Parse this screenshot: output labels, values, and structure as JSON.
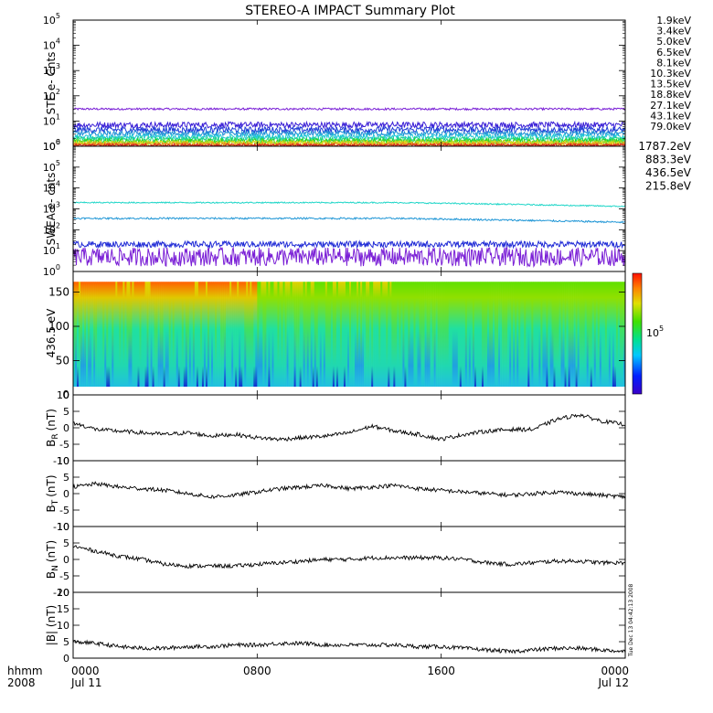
{
  "title": "STEREO-A IMPACT Summary Plot",
  "timestamp": "Tue Dec 13 04:42:13 2008",
  "bottom_left": {
    "line1": "hhmm",
    "line2": "2008"
  },
  "x_axis": {
    "ticks": [
      {
        "hours": 0,
        "label": "0000",
        "sub": "Jul 11"
      },
      {
        "hours": 8,
        "label": "0800",
        "sub": ""
      },
      {
        "hours": 16,
        "label": "1600",
        "sub": ""
      },
      {
        "hours": 24,
        "label": "0000",
        "sub": "Jul 12"
      }
    ]
  },
  "chart_data": [
    {
      "type": "line",
      "ylabel": "STE e- Cnts",
      "yscale": "log",
      "ylim": [
        1,
        100000
      ],
      "yticks": [
        {
          "base": "10",
          "exp": "0"
        },
        {
          "base": "10",
          "exp": "1"
        },
        {
          "base": "10",
          "exp": "2"
        },
        {
          "base": "10",
          "exp": "3"
        },
        {
          "base": "10",
          "exp": "4"
        },
        {
          "base": "10",
          "exp": "5"
        }
      ],
      "series": [
        {
          "name": "1.9keV",
          "color": "#7a1fd6",
          "level": 30,
          "noise": 0.04
        },
        {
          "name": "3.4keV",
          "color": "#3a1fd6",
          "level": 7,
          "noise": 0.12
        },
        {
          "name": "5.0keV",
          "color": "#1f3ad6",
          "level": 4.5,
          "noise": 0.12
        },
        {
          "name": "6.5keV",
          "color": "#1f8ed6",
          "level": 3.2,
          "noise": 0.1
        },
        {
          "name": "8.1keV",
          "color": "#1fc8d6",
          "level": 2.4,
          "noise": 0.1
        },
        {
          "name": "10.3keV",
          "color": "#1fd68a",
          "level": 1.9,
          "noise": 0.1
        },
        {
          "name": "13.5keV",
          "color": "#2ad61f",
          "level": 1.6,
          "noise": 0.1
        },
        {
          "name": "18.8keV",
          "color": "#9ed61f",
          "level": 1.4,
          "noise": 0.1
        },
        {
          "name": "27.1keV",
          "color": "#e6d41f",
          "level": 1.3,
          "noise": 0.1
        },
        {
          "name": "43.1keV",
          "color": "#e68a1f",
          "level": 1.2,
          "noise": 0.08
        },
        {
          "name": "79.0keV",
          "color": "#d61f1f",
          "level": 1.1,
          "noise": 0.06
        }
      ]
    },
    {
      "type": "line",
      "ylabel": "SWEA e- cnts",
      "yscale": "log",
      "ylim": [
        1,
        1000000
      ],
      "yticks": [
        {
          "base": "10",
          "exp": "0"
        },
        {
          "base": "10",
          "exp": "1"
        },
        {
          "base": "10",
          "exp": "2"
        },
        {
          "base": "10",
          "exp": "3"
        },
        {
          "base": "10",
          "exp": "4"
        },
        {
          "base": "10",
          "exp": "5"
        },
        {
          "base": "10",
          "exp": "6"
        }
      ],
      "series": [
        {
          "name": "1787.2eV",
          "color": "#7a1fd6",
          "level": 5,
          "noise": 0.45
        },
        {
          "name": "883.3eV",
          "color": "#1f2ad6",
          "level": 20,
          "noise": 0.15
        },
        {
          "name": "436.5eV",
          "color": "#1f96d6",
          "level": 350,
          "noise": 0.04
        },
        {
          "name": "215.8eV",
          "color": "#1fd6c8",
          "level": 2000,
          "noise": 0.03
        }
      ]
    },
    {
      "type": "heatmap",
      "ylabel": "436.5 eV",
      "ylim": [
        0,
        180
      ],
      "yticks": [
        "0",
        "50",
        "100",
        "150"
      ],
      "colorbar_label": "10",
      "colorbar_label_exp": "5"
    },
    {
      "type": "line",
      "ylabel": "B",
      "ylabel_sub": "R",
      "ylabel_unit": "(nT)",
      "ylim": [
        -10,
        10
      ],
      "yticks": [
        "-10",
        "-5",
        "0",
        "5",
        "10"
      ],
      "points": [
        [
          0,
          1.5
        ],
        [
          1,
          -0.5
        ],
        [
          2,
          -1
        ],
        [
          3,
          -1.5
        ],
        [
          4,
          -2
        ],
        [
          5,
          -1.5
        ],
        [
          6,
          -2.5
        ],
        [
          7,
          -2
        ],
        [
          8,
          -3
        ],
        [
          9,
          -3.5
        ],
        [
          10,
          -3
        ],
        [
          11,
          -2.5
        ],
        [
          12,
          -1.5
        ],
        [
          13,
          0.5
        ],
        [
          14,
          -1
        ],
        [
          15,
          -2
        ],
        [
          16,
          -3.5
        ],
        [
          17,
          -2
        ],
        [
          18,
          -1
        ],
        [
          19,
          -0.5
        ],
        [
          20,
          -0.5
        ],
        [
          21,
          2.5
        ],
        [
          22,
          4
        ],
        [
          23,
          2
        ],
        [
          24,
          1
        ]
      ]
    },
    {
      "type": "line",
      "ylabel": "B",
      "ylabel_sub": "T",
      "ylabel_unit": "(nT)",
      "ylim": [
        -10,
        10
      ],
      "yticks": [
        "-10",
        "-5",
        "0",
        "5",
        "10"
      ],
      "points": [
        [
          0,
          2
        ],
        [
          1,
          3
        ],
        [
          2,
          2
        ],
        [
          3,
          1.5
        ],
        [
          4,
          1
        ],
        [
          5,
          0
        ],
        [
          6,
          -1
        ],
        [
          7,
          -0.5
        ],
        [
          8,
          0.5
        ],
        [
          9,
          1.5
        ],
        [
          10,
          2
        ],
        [
          11,
          2.5
        ],
        [
          12,
          1.5
        ],
        [
          13,
          2
        ],
        [
          14,
          2.5
        ],
        [
          15,
          1.5
        ],
        [
          16,
          1
        ],
        [
          17,
          0.5
        ],
        [
          18,
          0
        ],
        [
          19,
          -0.5
        ],
        [
          20,
          0
        ],
        [
          21,
          0.5
        ],
        [
          22,
          0
        ],
        [
          23,
          -0.5
        ],
        [
          24,
          -1
        ]
      ]
    },
    {
      "type": "line",
      "ylabel": "B",
      "ylabel_sub": "N",
      "ylabel_unit": "(nT)",
      "ylim": [
        -10,
        10
      ],
      "yticks": [
        "-10",
        "-5",
        "0",
        "5",
        "10"
      ],
      "points": [
        [
          0,
          4
        ],
        [
          1,
          2.5
        ],
        [
          2,
          1
        ],
        [
          3,
          0
        ],
        [
          4,
          -1.5
        ],
        [
          5,
          -2
        ],
        [
          6,
          -2
        ],
        [
          7,
          -2
        ],
        [
          8,
          -1.5
        ],
        [
          9,
          -1
        ],
        [
          10,
          -0.5
        ],
        [
          11,
          0
        ],
        [
          12,
          0
        ],
        [
          13,
          0.5
        ],
        [
          14,
          0.5
        ],
        [
          15,
          0.5
        ],
        [
          16,
          0.5
        ],
        [
          17,
          0
        ],
        [
          18,
          -1
        ],
        [
          19,
          -1.5
        ],
        [
          20,
          -1
        ],
        [
          21,
          -0.5
        ],
        [
          22,
          -0.5
        ],
        [
          23,
          -1
        ],
        [
          24,
          -1
        ]
      ]
    },
    {
      "type": "line",
      "ylabel": "|B| (nT)",
      "ylim": [
        0,
        20
      ],
      "yticks": [
        "0",
        "5",
        "10",
        "15",
        "20"
      ],
      "points": [
        [
          0,
          5
        ],
        [
          1,
          4.5
        ],
        [
          2,
          3.5
        ],
        [
          3,
          3
        ],
        [
          4,
          3
        ],
        [
          5,
          3.5
        ],
        [
          6,
          3.5
        ],
        [
          7,
          4
        ],
        [
          8,
          4
        ],
        [
          9,
          4.5
        ],
        [
          10,
          4.5
        ],
        [
          11,
          4
        ],
        [
          12,
          4
        ],
        [
          13,
          4
        ],
        [
          14,
          4
        ],
        [
          15,
          3.5
        ],
        [
          16,
          3.5
        ],
        [
          17,
          3
        ],
        [
          18,
          2.5
        ],
        [
          19,
          2
        ],
        [
          20,
          2.5
        ],
        [
          21,
          3
        ],
        [
          22,
          3
        ],
        [
          23,
          2.5
        ],
        [
          24,
          2
        ]
      ]
    }
  ]
}
